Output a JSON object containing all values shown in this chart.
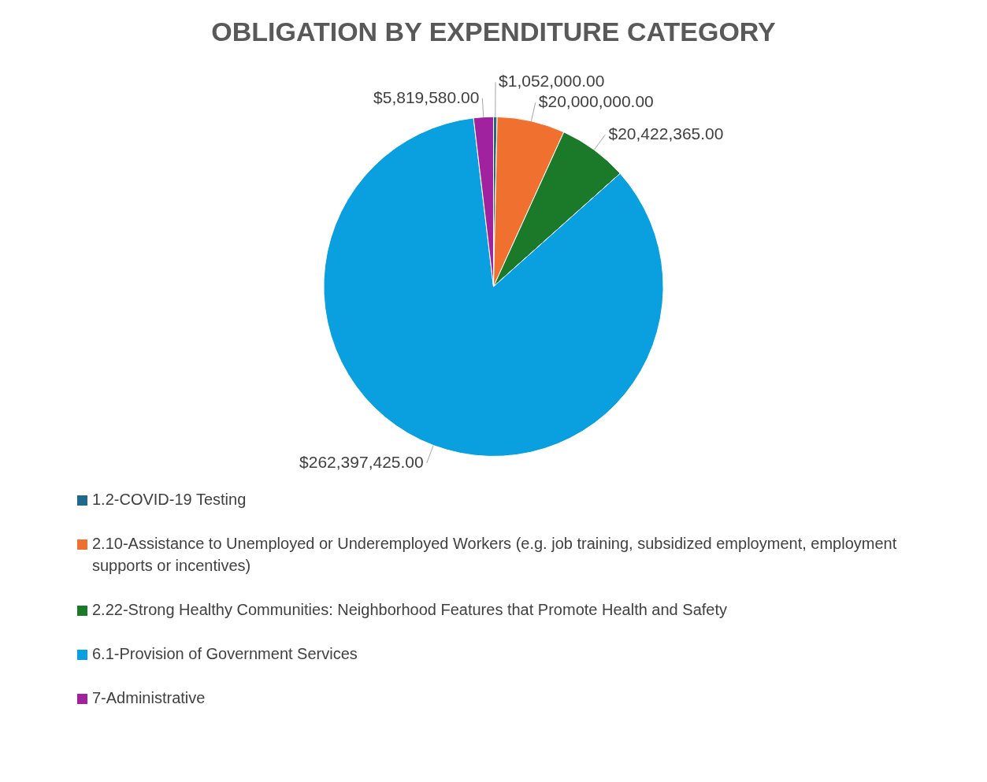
{
  "chart_data": {
    "type": "pie",
    "title": "OBLIGATION BY EXPENDITURE CATEGORY",
    "categories": [
      "1.2-COVID-19 Testing",
      "2.10-Assistance to Unemployed or Underemployed Workers (e.g. job training, subsidized employment, employment supports or incentives)",
      "2.22-Strong Healthy Communities: Neighborhood Features that Promote Health and Safety",
      "6.1-Provision of Government Services",
      "7-Administrative"
    ],
    "values": [
      1052000,
      20000000,
      20422365,
      262397425,
      5819580
    ],
    "value_labels": [
      "$1,052,000.00",
      "$20,000,000.00",
      "$20,422,365.00",
      "$262,397,425.00",
      "$5,819,580.00"
    ],
    "colors": [
      "#1f6a8c",
      "#f07030",
      "#1a7a2a",
      "#0aa0e0",
      "#a0229e"
    ],
    "legend": "bottom"
  }
}
